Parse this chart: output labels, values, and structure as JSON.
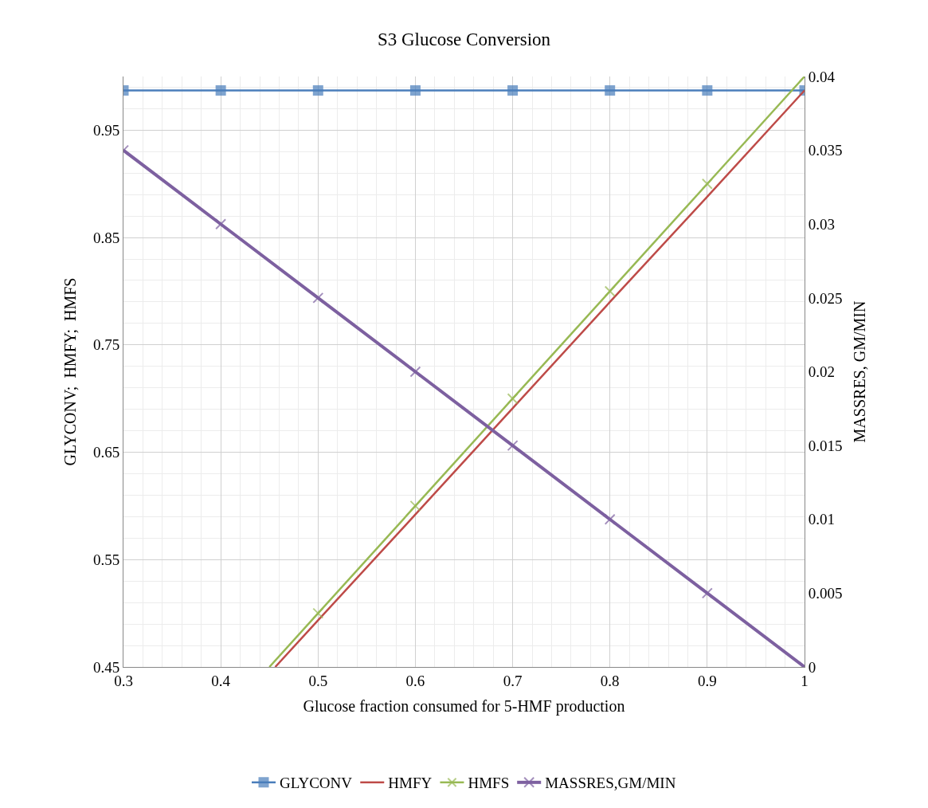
{
  "chart_data": {
    "type": "line",
    "title": "S3 Glucose Conversion",
    "xlabel": "Glucose fraction consumed for 5-HMF production",
    "ylabel": "GLYCONV;  HMFY;  HMFS",
    "y2label": "MASSRES, GM/MIN",
    "x": [
      0.3,
      0.4,
      0.5,
      0.6,
      0.7,
      0.8,
      0.9,
      1
    ],
    "xlim": [
      0.3,
      1
    ],
    "xticks": [
      0.3,
      0.4,
      0.5,
      0.6,
      0.7,
      0.8,
      0.9,
      1
    ],
    "ylim": [
      0.45,
      1.0
    ],
    "yticks": [
      0.45,
      0.55,
      0.65,
      0.75,
      0.85,
      0.95
    ],
    "y2lim": [
      0,
      0.04
    ],
    "y2ticks": [
      0,
      0.005,
      0.01,
      0.015,
      0.02,
      0.025,
      0.03,
      0.035,
      0.04
    ],
    "grid": true,
    "legend": "bottom",
    "line_style": "solid",
    "series": [
      {
        "name": "GLYCONV",
        "color": "#4a7ebb",
        "marker": "square",
        "values": [
          0.987,
          0.987,
          0.987,
          0.987,
          0.987,
          0.987,
          0.987,
          0.987
        ]
      },
      {
        "name": "HMFY",
        "color": "#be4b48",
        "marker": "none",
        "x": [
          0.456,
          0.5,
          0.6,
          0.7,
          0.8,
          0.9,
          1
        ],
        "values": [
          0.45,
          0.4935,
          0.592,
          0.691,
          0.79,
          0.888,
          0.987
        ]
      },
      {
        "name": "HMFS",
        "color": "#98b954",
        "marker": "cross",
        "x": [
          0.45,
          0.5,
          0.6,
          0.7,
          0.8,
          0.9,
          1
        ],
        "values": [
          0.45,
          0.5,
          0.6,
          0.7,
          0.8,
          0.9,
          1.0
        ]
      },
      {
        "name": "MASSRES,GM/MIN",
        "color": "#7d60a0",
        "marker": "cross",
        "axis": "y2",
        "values": [
          0.035,
          0.03,
          0.025,
          0.02,
          0.015,
          0.01,
          0.005,
          0
        ]
      }
    ]
  }
}
